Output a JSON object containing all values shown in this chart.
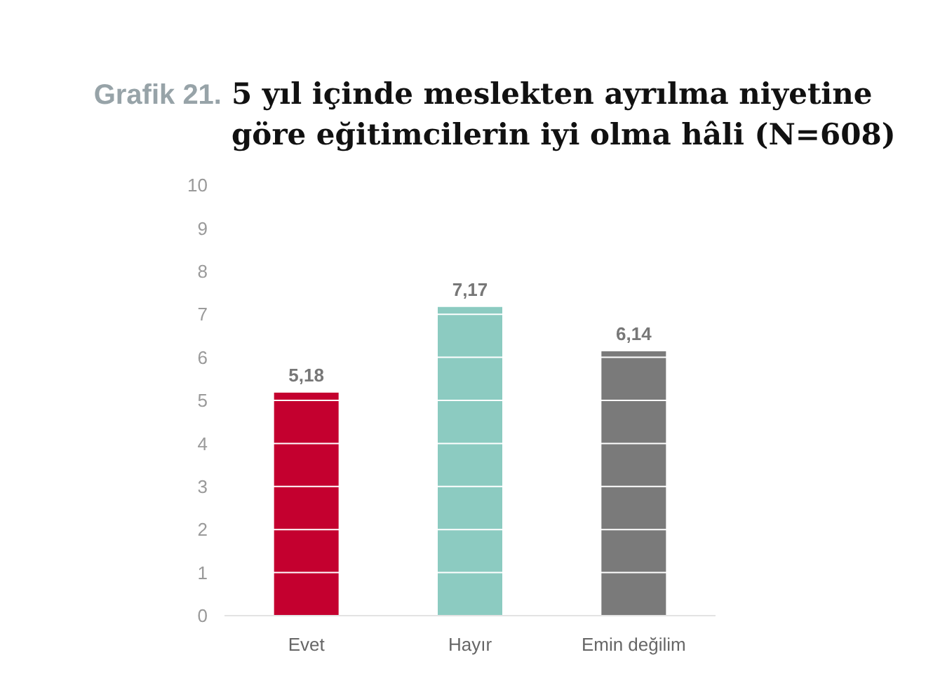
{
  "chart_data": {
    "type": "bar",
    "title": "5 yıl içinde meslekten ayrılma niyetine göre eğitimcilerin iyi olma hâli (N=608)",
    "annotations": [
      "Grafik 21."
    ],
    "categories": [
      "Evet",
      "Hayır",
      "Emin değilim"
    ],
    "values": [
      5.18,
      7.17,
      6.14
    ],
    "value_labels": [
      "5,18",
      "7,17",
      "6,14"
    ],
    "colors": [
      "#c4002f",
      "#8ccbc1",
      "#7a7a7a"
    ],
    "ylim": [
      0,
      10
    ],
    "yticks": [
      0,
      1,
      2,
      3,
      4,
      5,
      6,
      7,
      8,
      9,
      10
    ],
    "grid": "y"
  }
}
